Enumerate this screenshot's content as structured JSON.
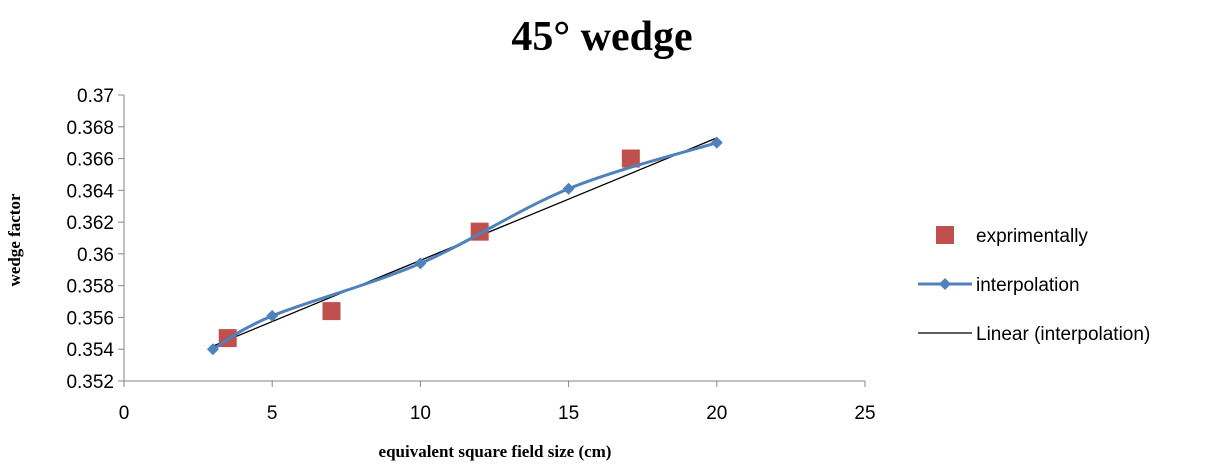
{
  "chart_data": {
    "type": "scatter",
    "title": "45° wedge",
    "xlabel": "equivalent square field size (cm)",
    "ylabel": "wedge factor",
    "xlim": [
      0,
      25
    ],
    "ylim": [
      0.352,
      0.37
    ],
    "x_ticks": [
      "0",
      "5",
      "10",
      "15",
      "20",
      "25"
    ],
    "y_ticks": [
      "0.352",
      "0.354",
      "0.356",
      "0.358",
      "0.36",
      "0.362",
      "0.364",
      "0.366",
      "0.368",
      "0.37"
    ],
    "grid": false,
    "legend_position": "right",
    "series": [
      {
        "name": "exprimentally",
        "kind": "marker",
        "marker": "square",
        "color": "#c0504d",
        "x": [
          3.5,
          7,
          12,
          17.1
        ],
        "y": [
          0.3547,
          0.3564,
          0.3614,
          0.366
        ]
      },
      {
        "name": "interpolation",
        "kind": "smooth-line",
        "marker": "diamond",
        "color": "#4f81bd",
        "x": [
          3,
          5,
          10,
          15,
          20
        ],
        "y": [
          0.354,
          0.3561,
          0.3594,
          0.3641,
          0.367
        ]
      },
      {
        "name": "Linear (interpolation)",
        "kind": "line",
        "color": "#000000",
        "x": [
          3,
          20
        ],
        "y": [
          0.3542,
          0.3673
        ]
      }
    ]
  }
}
